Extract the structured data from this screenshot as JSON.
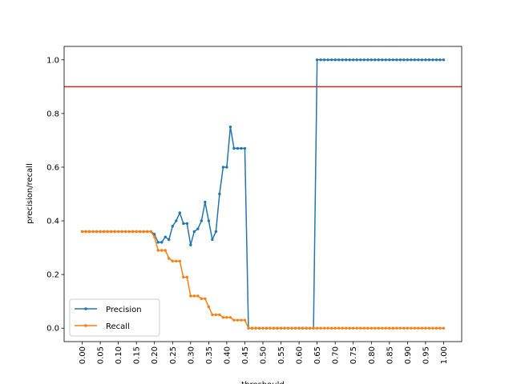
{
  "chart_data": {
    "type": "line",
    "title": "",
    "xlabel": "threshould",
    "ylabel": "precision/recall",
    "xlim": [
      -0.05,
      1.05
    ],
    "ylim": [
      -0.05,
      1.05
    ],
    "xticks": [
      0.0,
      0.05,
      0.1,
      0.15,
      0.2,
      0.25,
      0.3,
      0.35,
      0.4,
      0.45,
      0.5,
      0.55,
      0.6,
      0.65,
      0.7,
      0.75,
      0.8,
      0.85,
      0.9,
      0.95,
      1.0
    ],
    "xtick_labels": [
      "0.00",
      "0.05",
      "0.10",
      "0.15",
      "0.20",
      "0.25",
      "0.30",
      "0.35",
      "0.40",
      "0.45",
      "0.50",
      "0.55",
      "0.60",
      "0.65",
      "0.70",
      "0.75",
      "0.80",
      "0.85",
      "0.90",
      "0.95",
      "1.00"
    ],
    "yticks": [
      0.0,
      0.2,
      0.4,
      0.6,
      0.8,
      1.0
    ],
    "ytick_labels": [
      "0.0",
      "0.2",
      "0.4",
      "0.6",
      "0.8",
      "1.0"
    ],
    "grid": false,
    "legend_position": "lower-left",
    "hline": {
      "y": 0.9,
      "color": "#d62728"
    },
    "x": [
      0.0,
      0.01,
      0.02,
      0.03,
      0.04,
      0.05,
      0.06,
      0.07,
      0.08,
      0.09,
      0.1,
      0.11,
      0.12,
      0.13,
      0.14,
      0.15,
      0.16,
      0.17,
      0.18,
      0.19,
      0.2,
      0.21,
      0.22,
      0.23,
      0.24,
      0.25,
      0.26,
      0.27,
      0.28,
      0.29,
      0.3,
      0.31,
      0.32,
      0.33,
      0.34,
      0.35,
      0.36,
      0.37,
      0.38,
      0.39,
      0.4,
      0.41,
      0.42,
      0.43,
      0.44,
      0.45,
      0.46,
      0.47,
      0.48,
      0.49,
      0.5,
      0.51,
      0.52,
      0.53,
      0.54,
      0.55,
      0.56,
      0.57,
      0.58,
      0.59,
      0.6,
      0.61,
      0.62,
      0.63,
      0.64,
      0.65,
      0.66,
      0.67,
      0.68,
      0.69,
      0.7,
      0.71,
      0.72,
      0.73,
      0.74,
      0.75,
      0.76,
      0.77,
      0.78,
      0.79,
      0.8,
      0.81,
      0.82,
      0.83,
      0.84,
      0.85,
      0.86,
      0.87,
      0.88,
      0.89,
      0.9,
      0.91,
      0.92,
      0.93,
      0.94,
      0.95,
      0.96,
      0.97,
      0.98,
      0.99,
      1.0
    ],
    "series": [
      {
        "name": "Precision",
        "color": "#1f77b4",
        "values": [
          0.36,
          0.36,
          0.36,
          0.36,
          0.36,
          0.36,
          0.36,
          0.36,
          0.36,
          0.36,
          0.36,
          0.36,
          0.36,
          0.36,
          0.36,
          0.36,
          0.36,
          0.36,
          0.36,
          0.36,
          0.35,
          0.32,
          0.32,
          0.34,
          0.33,
          0.38,
          0.4,
          0.43,
          0.39,
          0.39,
          0.31,
          0.36,
          0.37,
          0.4,
          0.47,
          0.4,
          0.33,
          0.36,
          0.5,
          0.6,
          0.6,
          0.75,
          0.67,
          0.67,
          0.67,
          0.67,
          0.0,
          0.0,
          0.0,
          0.0,
          0.0,
          0.0,
          0.0,
          0.0,
          0.0,
          0.0,
          0.0,
          0.0,
          0.0,
          0.0,
          0.0,
          0.0,
          0.0,
          0.0,
          0.0,
          1.0,
          1.0,
          1.0,
          1.0,
          1.0,
          1.0,
          1.0,
          1.0,
          1.0,
          1.0,
          1.0,
          1.0,
          1.0,
          1.0,
          1.0,
          1.0,
          1.0,
          1.0,
          1.0,
          1.0,
          1.0,
          1.0,
          1.0,
          1.0,
          1.0,
          1.0,
          1.0,
          1.0,
          1.0,
          1.0,
          1.0,
          1.0,
          1.0,
          1.0,
          1.0,
          1.0
        ]
      },
      {
        "name": "Recall",
        "color": "#ff7f0e",
        "values": [
          0.36,
          0.36,
          0.36,
          0.36,
          0.36,
          0.36,
          0.36,
          0.36,
          0.36,
          0.36,
          0.36,
          0.36,
          0.36,
          0.36,
          0.36,
          0.36,
          0.36,
          0.36,
          0.36,
          0.36,
          0.34,
          0.29,
          0.29,
          0.29,
          0.26,
          0.25,
          0.25,
          0.25,
          0.19,
          0.19,
          0.12,
          0.12,
          0.12,
          0.11,
          0.11,
          0.08,
          0.05,
          0.05,
          0.05,
          0.04,
          0.04,
          0.04,
          0.03,
          0.03,
          0.03,
          0.03,
          0.0,
          0.0,
          0.0,
          0.0,
          0.0,
          0.0,
          0.0,
          0.0,
          0.0,
          0.0,
          0.0,
          0.0,
          0.0,
          0.0,
          0.0,
          0.0,
          0.0,
          0.0,
          0.0,
          0.0,
          0.0,
          0.0,
          0.0,
          0.0,
          0.0,
          0.0,
          0.0,
          0.0,
          0.0,
          0.0,
          0.0,
          0.0,
          0.0,
          0.0,
          0.0,
          0.0,
          0.0,
          0.0,
          0.0,
          0.0,
          0.0,
          0.0,
          0.0,
          0.0,
          0.0,
          0.0,
          0.0,
          0.0,
          0.0,
          0.0,
          0.0,
          0.0,
          0.0,
          0.0,
          0.0
        ]
      }
    ]
  }
}
